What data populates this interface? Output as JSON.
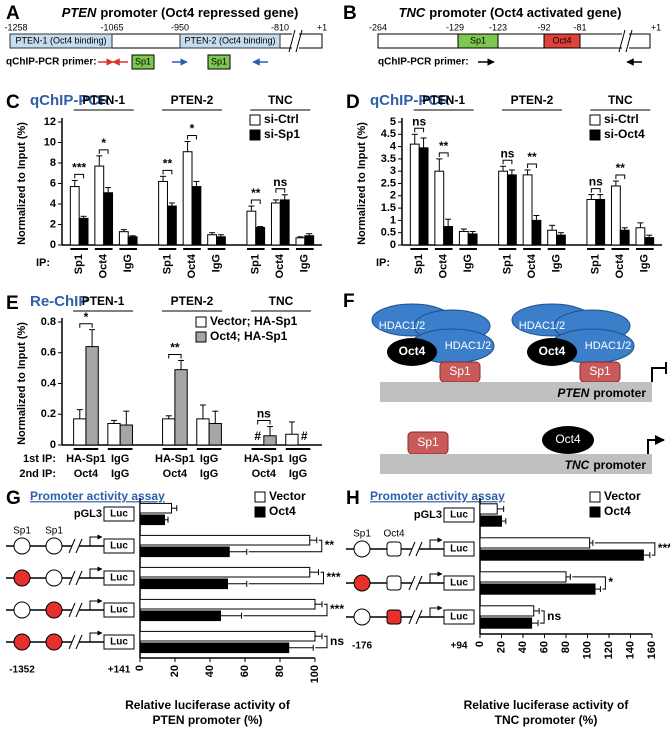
{
  "diagram_A": {
    "label": "A",
    "gene": "PTEN",
    "title": "promoter (Oct4 repressed gene)",
    "positions": [
      "-1258",
      "-1065",
      "-950",
      "-810",
      "+1"
    ],
    "regions": [
      "PTEN-1 (Oct4 binding)",
      "PTEN-2 (Oct4 binding)"
    ],
    "primer_label": "qChIP-PCR primer:",
    "site": "Sp1"
  },
  "diagram_B": {
    "label": "B",
    "gene": "TNC",
    "title": "promoter (Oct4 activated gene)",
    "positions": [
      "-264",
      "-129",
      "-123",
      "-92",
      "-81",
      "+1"
    ],
    "sites": [
      "Sp1",
      "Oct4"
    ],
    "primer_label": "qChIP-PCR primer:"
  },
  "diagram_F": {
    "label": "F",
    "hdac": "HDAC1/2",
    "oct4": "Oct4",
    "sp1": "Sp1",
    "promoters": [
      {
        "gene": "PTEN",
        "text": "promoter"
      },
      {
        "gene": "TNC",
        "text": "promoter"
      }
    ]
  },
  "chart_data": [
    {
      "type": "bar",
      "label": "C",
      "title": "qChIP-PCR",
      "ylabel": "Normalized to Input (%)",
      "groups": [
        "PTEN-1",
        "PTEN-2",
        "TNC"
      ],
      "category_axis_label": "IP:",
      "categories": [
        "Sp1",
        "Oct4",
        "IgG",
        "Sp1",
        "Oct4",
        "IgG",
        "Sp1",
        "Oct4",
        "IgG"
      ],
      "series": [
        {
          "name": "si-Ctrl",
          "color": "#ffffff",
          "values": [
            5.7,
            7.7,
            1.3,
            6.2,
            9.1,
            1.0,
            3.3,
            4.1,
            0.7
          ],
          "errors": [
            0.6,
            1.0,
            0.2,
            0.5,
            1.0,
            0.2,
            0.5,
            0.3,
            0.1
          ]
        },
        {
          "name": "si-Sp1",
          "color": "#000000",
          "values": [
            2.6,
            5.1,
            0.8,
            3.8,
            5.7,
            0.8,
            1.7,
            4.4,
            0.9
          ],
          "errors": [
            0.2,
            0.5,
            0.1,
            0.3,
            0.5,
            0.2,
            0.1,
            0.5,
            0.2
          ]
        }
      ],
      "significance": [
        "***",
        "*",
        null,
        "**",
        "*",
        null,
        "**",
        "ns",
        null
      ],
      "ylim": [
        0,
        12
      ],
      "yticks": [
        0,
        2,
        4,
        6,
        8,
        10,
        12
      ]
    },
    {
      "type": "bar",
      "label": "D",
      "title": "qChIP-PCR",
      "ylabel": "Normalized to Input (%)",
      "groups": [
        "PTEN-1",
        "PTEN-2",
        "TNC"
      ],
      "category_axis_label": "IP:",
      "categories": [
        "Sp1",
        "Oct4",
        "IgG",
        "Sp1",
        "Oct4",
        "IgG",
        "Sp1",
        "Oct4",
        "IgG"
      ],
      "series": [
        {
          "name": "si-Ctrl",
          "color": "#ffffff",
          "values": [
            4.1,
            3.0,
            0.55,
            3.0,
            2.85,
            0.6,
            1.85,
            2.4,
            0.7
          ],
          "errors": [
            0.4,
            0.5,
            0.1,
            0.2,
            0.2,
            0.2,
            0.2,
            0.2,
            0.2
          ]
        },
        {
          "name": "si-Oct4",
          "color": "#000000",
          "values": [
            3.95,
            0.75,
            0.45,
            2.85,
            1.0,
            0.4,
            1.85,
            0.6,
            0.3
          ],
          "errors": [
            0.4,
            0.3,
            0.1,
            0.2,
            0.2,
            0.1,
            0.2,
            0.1,
            0.1
          ]
        }
      ],
      "significance": [
        "ns",
        "**",
        null,
        "ns",
        "**",
        null,
        "ns",
        "**",
        null
      ],
      "ylim": [
        0,
        5
      ],
      "yticks": [
        0,
        0.5,
        1,
        1.5,
        2,
        2.5,
        3,
        3.5,
        4,
        4.5,
        5
      ]
    },
    {
      "type": "bar",
      "label": "E",
      "title": "Re-ChIP",
      "ylabel": "Normalized to Input (%)",
      "groups": [
        "PTEN-1",
        "PTEN-2",
        "TNC"
      ],
      "category_row_labels": [
        "1st IP:",
        "2nd IP:"
      ],
      "categories": [
        "HA-Sp1",
        "IgG",
        "HA-Sp1",
        "IgG",
        "HA-Sp1",
        "IgG"
      ],
      "categories2": [
        "Oct4",
        "IgG",
        "Oct4",
        "IgG",
        "Oct4",
        "IgG"
      ],
      "series": [
        {
          "name": "Vector; HA-Sp1",
          "color": "#ffffff",
          "values": [
            0.17,
            0.14,
            0.17,
            0.17,
            null,
            0.07
          ],
          "errors": [
            0.06,
            0.02,
            0.02,
            0.09,
            null,
            0.08
          ],
          "value_labels": [
            null,
            null,
            null,
            null,
            "#",
            null
          ]
        },
        {
          "name": "Oct4; HA-Sp1",
          "color": "#a6a6a6",
          "values": [
            0.64,
            0.13,
            0.49,
            0.14,
            0.06,
            null
          ],
          "errors": [
            0.11,
            0.09,
            0.06,
            0.08,
            0.06,
            null
          ],
          "value_labels": [
            null,
            null,
            null,
            null,
            null,
            "#"
          ]
        }
      ],
      "significance": [
        "*",
        null,
        "**",
        null,
        "ns",
        null
      ],
      "ylim": [
        0,
        0.8
      ],
      "yticks": [
        0,
        0.2,
        0.4,
        0.6,
        0.8
      ]
    },
    {
      "type": "hbar",
      "label": "G",
      "title": "Promoter activity assay",
      "xlabel": [
        "Relative luciferase activity of",
        "PTEN promoter (%)"
      ],
      "categories": [
        "pGL3",
        null,
        null,
        null,
        null
      ],
      "box_label": "Luc",
      "site_labels": [
        "Sp1",
        "Sp1"
      ],
      "site_shapes": [
        "circle",
        "circle"
      ],
      "site_fills": [
        null,
        [
          "#ffffff",
          "#ffffff"
        ],
        [
          "#e8302a",
          "#ffffff"
        ],
        [
          "#ffffff",
          "#e8302a"
        ],
        [
          "#e8302a",
          "#e8302a"
        ]
      ],
      "start_label": "-1352",
      "end_label": "+141",
      "series": [
        {
          "name": "Vector",
          "color": "#ffffff",
          "values": [
            18,
            97,
            97,
            100,
            100
          ],
          "errors": [
            3,
            4,
            5,
            4,
            4
          ]
        },
        {
          "name": "Oct4",
          "color": "#000000",
          "values": [
            14,
            51,
            50,
            46,
            85
          ],
          "errors": [
            2,
            10,
            11,
            12,
            14
          ]
        }
      ],
      "significance": [
        null,
        "**",
        "***",
        "***",
        "ns"
      ],
      "xlim": [
        0,
        100
      ],
      "xticks": [
        0,
        20,
        40,
        60,
        80,
        100
      ]
    },
    {
      "type": "hbar",
      "label": "H",
      "title": "Promoter activity assay",
      "xlabel": [
        "Relative luciferase activity of",
        "TNC promoter (%)"
      ],
      "categories": [
        "pGL3",
        null,
        null,
        null
      ],
      "box_label": "Luc",
      "site_labels": [
        "Sp1",
        "Oct4"
      ],
      "site_shapes": [
        "circle",
        "square"
      ],
      "site_fills": [
        null,
        [
          "#ffffff",
          "#ffffff"
        ],
        [
          "#e8302a",
          "#ffffff"
        ],
        [
          "#ffffff",
          "#e8302a"
        ]
      ],
      "start_label": "-176",
      "end_label": "+94",
      "series": [
        {
          "name": "Vector",
          "color": "#ffffff",
          "values": [
            16,
            102,
            80,
            50
          ],
          "errors": [
            6,
            3,
            4,
            5
          ]
        },
        {
          "name": "Oct4",
          "color": "#000000",
          "values": [
            20,
            152,
            107,
            48
          ],
          "errors": [
            4,
            6,
            5,
            6
          ]
        }
      ],
      "significance": [
        null,
        "***",
        "*",
        "ns"
      ],
      "xlim": [
        0,
        160
      ],
      "xticks": [
        0,
        20,
        40,
        60,
        80,
        100,
        120,
        140,
        160
      ]
    }
  ]
}
